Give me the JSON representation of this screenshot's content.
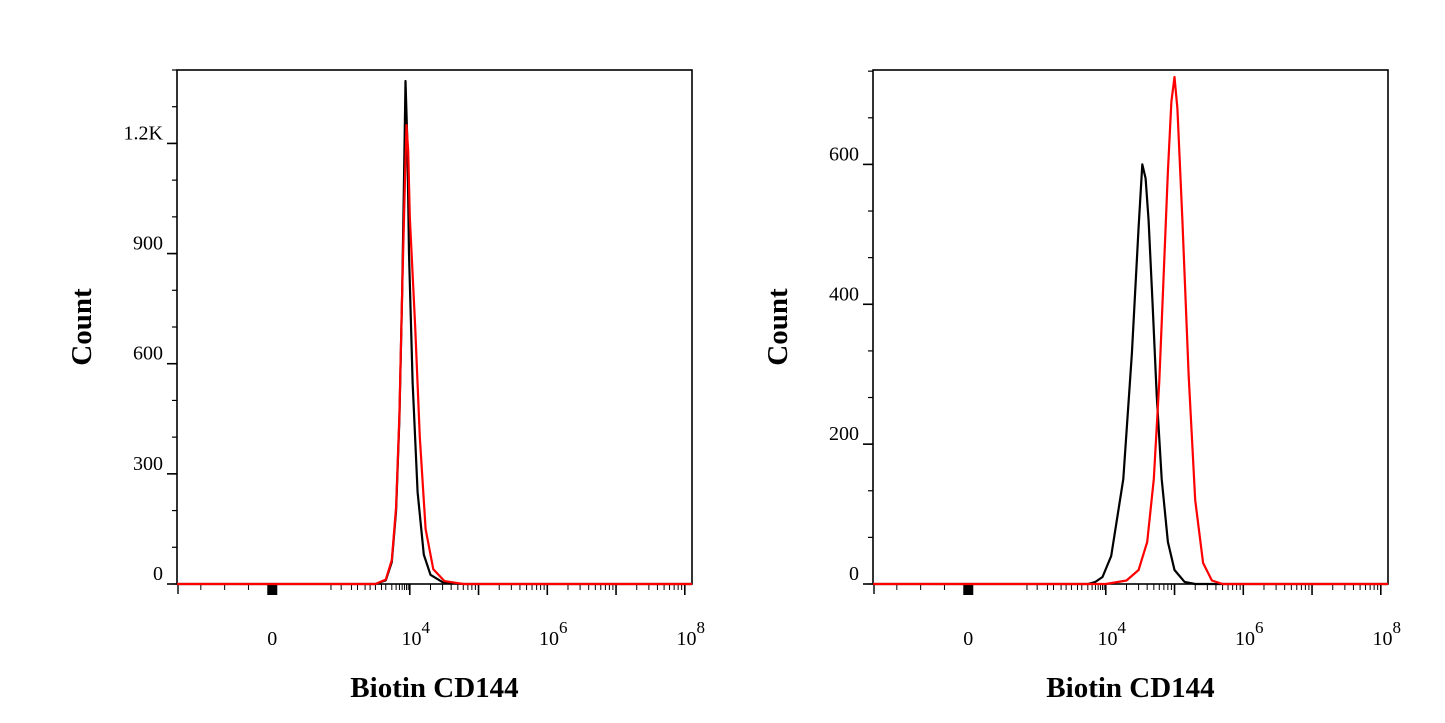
{
  "chart_data": [
    {
      "type": "line",
      "title": "",
      "xlabel": "Biotin CD144",
      "ylabel": "Count",
      "xscale": "biexponential",
      "xlim": [
        -2000,
        100000000
      ],
      "ylim": [
        0,
        1400
      ],
      "x_ticks": [
        {
          "value": 0,
          "base": "0",
          "exp": ""
        },
        {
          "value": 10000,
          "base": "10",
          "exp": "4"
        },
        {
          "value": 1000000,
          "base": "10",
          "exp": "6"
        },
        {
          "value": 100000000,
          "base": "10",
          "exp": "8"
        }
      ],
      "y_ticks": [
        {
          "value": 0,
          "label": "0"
        },
        {
          "value": 300,
          "label": "300"
        },
        {
          "value": 600,
          "label": "600"
        },
        {
          "value": 900,
          "label": "900"
        },
        {
          "value": 1200,
          "label": "1.2K"
        }
      ],
      "grid": false,
      "series": [
        {
          "color": "#000000",
          "x": [
            400,
            1000,
            2000,
            3000,
            4000,
            5000,
            6000,
            6800,
            7500,
            8500,
            9500,
            11000,
            13000,
            16000,
            20000,
            30000,
            60000
          ],
          "y": [
            0,
            0,
            10,
            60,
            200,
            450,
            800,
            1100,
            1370,
            1200,
            900,
            550,
            250,
            80,
            25,
            5,
            0
          ]
        },
        {
          "color": "#ff0000",
          "x": [
            400,
            1000,
            2000,
            3000,
            4000,
            5000,
            6000,
            7000,
            8000,
            9000,
            10000,
            12000,
            14000,
            17000,
            22000,
            32000,
            60000
          ],
          "y": [
            0,
            0,
            12,
            65,
            210,
            460,
            800,
            1050,
            1250,
            1180,
            1000,
            700,
            400,
            150,
            40,
            8,
            0
          ]
        }
      ]
    },
    {
      "type": "line",
      "title": "",
      "xlabel": "Biotin CD144",
      "ylabel": "Count",
      "xscale": "biexponential",
      "xlim": [
        -2000,
        100000000
      ],
      "ylim": [
        0,
        735
      ],
      "x_ticks": [
        {
          "value": 0,
          "base": "0",
          "exp": ""
        },
        {
          "value": 10000,
          "base": "10",
          "exp": "4"
        },
        {
          "value": 1000000,
          "base": "10",
          "exp": "6"
        },
        {
          "value": 100000000,
          "base": "10",
          "exp": "8"
        }
      ],
      "y_ticks": [
        {
          "value": 0,
          "label": "0"
        },
        {
          "value": 200,
          "label": "200"
        },
        {
          "value": 400,
          "label": "400"
        },
        {
          "value": 600,
          "label": "600"
        }
      ],
      "grid": false,
      "series": [
        {
          "color": "#000000",
          "x": [
            1500,
            3000,
            5000,
            8000,
            12000,
            18000,
            24000,
            30000,
            34000,
            38000,
            42000,
            48000,
            55000,
            65000,
            80000,
            100000,
            140000,
            200000
          ],
          "y": [
            0,
            0,
            3,
            10,
            40,
            150,
            330,
            510,
            600,
            580,
            520,
            400,
            270,
            150,
            60,
            20,
            3,
            0
          ]
        },
        {
          "color": "#ff0000",
          "x": [
            5000,
            10000,
            20000,
            30000,
            40000,
            50000,
            60000,
            70000,
            80000,
            90000,
            100000,
            110000,
            130000,
            160000,
            200000,
            260000,
            350000,
            500000
          ],
          "y": [
            0,
            0,
            5,
            20,
            60,
            150,
            290,
            450,
            590,
            690,
            725,
            680,
            520,
            300,
            120,
            30,
            5,
            0
          ]
        }
      ]
    }
  ]
}
